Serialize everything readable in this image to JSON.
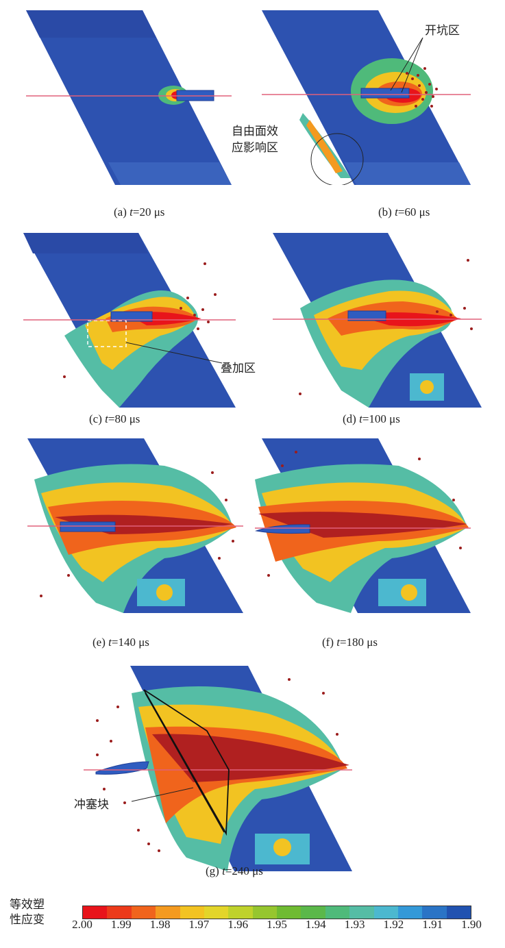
{
  "panels": [
    {
      "id": "a",
      "caption_letter": "(a)",
      "caption_var": "t",
      "caption_value": "=20 μs"
    },
    {
      "id": "b",
      "caption_letter": "(b)",
      "caption_var": "t",
      "caption_value": "=60 μs"
    },
    {
      "id": "c",
      "caption_letter": "(c)",
      "caption_var": "t",
      "caption_value": "=80 μs"
    },
    {
      "id": "d",
      "caption_letter": "(d)",
      "caption_var": "t",
      "caption_value": "=100 μs"
    },
    {
      "id": "e",
      "caption_letter": "(e)",
      "caption_var": "t",
      "caption_value": "=140 μs"
    },
    {
      "id": "f",
      "caption_letter": "(f)",
      "caption_var": "t",
      "caption_value": "=180 μs"
    },
    {
      "id": "g",
      "caption_letter": "(g)",
      "caption_var": "t",
      "caption_value": "=240 μs"
    }
  ],
  "annotations": {
    "crater_zone": "开坑区",
    "free_surface_line1": "自由面效",
    "free_surface_line2": "应影响区",
    "superposition_zone": "叠加区",
    "plug_block": "冲塞块"
  },
  "legend": {
    "title_line1": "等效塑",
    "title_line2": "性应变",
    "ticks": [
      "2.00",
      "1.99",
      "1.98",
      "1.97",
      "1.96",
      "1.95",
      "1.94",
      "1.93",
      "1.92",
      "1.91",
      "1.90"
    ],
    "colors": [
      "#e8141b",
      "#ec3a1a",
      "#f0641c",
      "#f49a20",
      "#f2c322",
      "#e3d52a",
      "#bfd22c",
      "#96c62f",
      "#6fbb32",
      "#5bb84a",
      "#4fba7a",
      "#55bda5",
      "#4cb8cf",
      "#3499d8",
      "#2a74c6",
      "#2152b0"
    ]
  },
  "colors": {
    "plate_blue": "#2d52b0",
    "particle_red": "#9b1d1d",
    "axis_line": "#e0607a"
  }
}
